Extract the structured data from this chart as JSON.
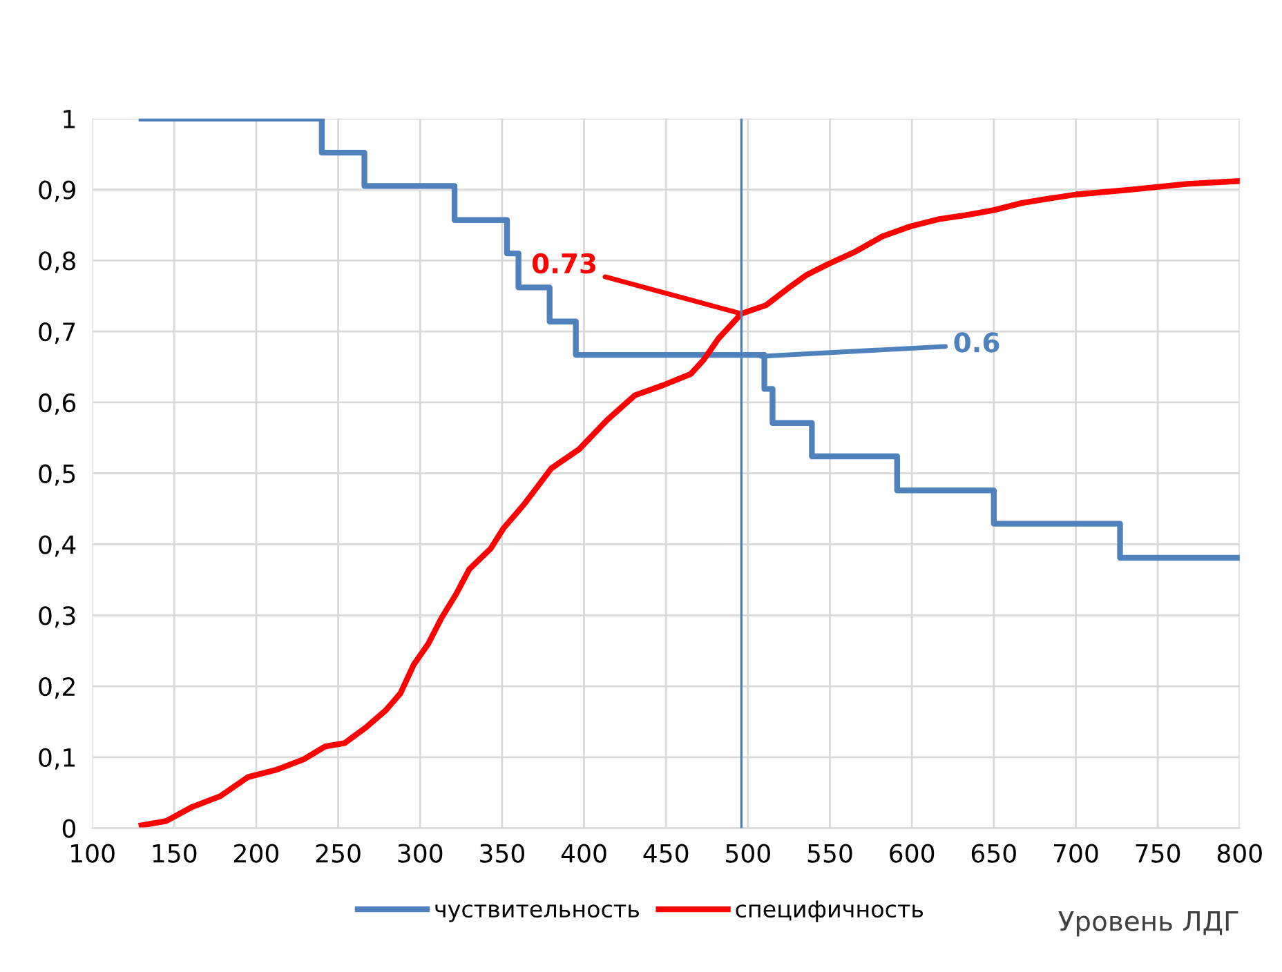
{
  "chart_data": {
    "type": "line",
    "xlabel": "Уровень ЛДГ",
    "xlim": [
      100,
      800
    ],
    "xticks": [
      100,
      150,
      200,
      250,
      300,
      350,
      400,
      450,
      500,
      550,
      600,
      650,
      700,
      750,
      800
    ],
    "ylim": [
      0,
      1
    ],
    "yticks": [
      0,
      {
        "value": 0.1,
        "label": "0,1"
      },
      {
        "value": 0.2,
        "label": "0,2"
      },
      {
        "value": 0.3,
        "label": "0,3"
      },
      {
        "value": 0.4,
        "label": "0,4"
      },
      {
        "value": 0.5,
        "label": "0,5"
      },
      {
        "value": 0.6,
        "label": "0,6"
      },
      {
        "value": 0.7,
        "label": "0,7"
      },
      {
        "value": 0.8,
        "label": "0,8"
      },
      {
        "value": 0.9,
        "label": "0,9"
      },
      1
    ],
    "grid": true,
    "legend": "bottom",
    "marker": "none",
    "line_style": "solid",
    "series": [
      {
        "name": "чуствительность",
        "type": "step",
        "color": "#4f81bd",
        "x": [
          130,
          240,
          266,
          321,
          353,
          360,
          379,
          395,
          510,
          515,
          539,
          591,
          650,
          727,
          800
        ],
        "values": [
          1,
          0.952,
          0.905,
          0.857,
          0.81,
          0.762,
          0.714,
          0.667,
          0.619,
          0.571,
          0.524,
          0.476,
          0.429,
          0.381,
          0.381
        ]
      },
      {
        "name": "специфичность",
        "color": "#ff0000",
        "x": [
          130,
          145,
          161,
          178,
          195,
          212,
          229,
          242,
          254,
          267,
          279,
          288,
          296,
          305,
          313,
          322,
          330,
          343,
          351,
          364,
          380,
          397,
          414,
          431,
          448,
          465,
          473,
          482,
          496,
          511,
          524,
          536,
          549,
          566,
          582,
          599,
          616,
          633,
          650,
          667,
          683,
          700,
          734,
          768,
          800
        ],
        "values": [
          0.004,
          0.01,
          0.03,
          0.045,
          0.072,
          0.082,
          0.097,
          0.115,
          0.12,
          0.142,
          0.166,
          0.19,
          0.23,
          0.26,
          0.296,
          0.33,
          0.365,
          0.394,
          0.423,
          0.458,
          0.507,
          0.534,
          0.575,
          0.61,
          0.624,
          0.64,
          0.66,
          0.69,
          0.725,
          0.737,
          0.76,
          0.78,
          0.795,
          0.813,
          0.834,
          0.848,
          0.858,
          0.864,
          0.871,
          0.881,
          0.887,
          0.893,
          0.9,
          0.908,
          0.912
        ]
      }
    ],
    "ref_lines": [
      {
        "axis": "x",
        "value": 496,
        "color": "#4f81bd"
      }
    ],
    "annotations": [
      {
        "text": "0.6",
        "x": 508,
        "y": 0.665
      },
      {
        "text": "0.73",
        "x": 496,
        "y": 0.725
      }
    ]
  }
}
